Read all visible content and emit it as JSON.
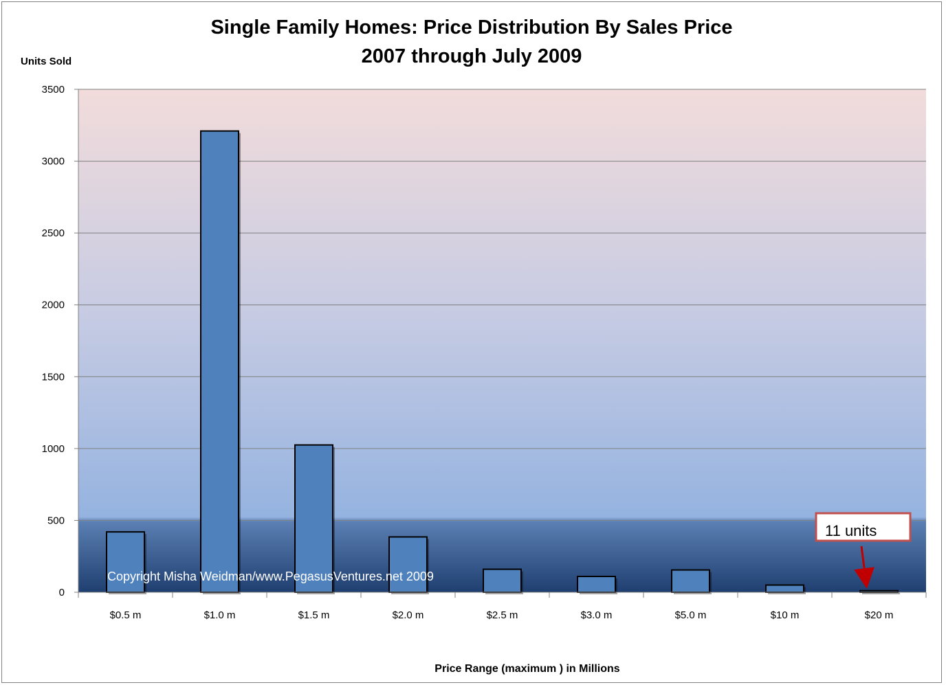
{
  "chart_data": {
    "type": "bar",
    "title": "Single Family Homes:  Price Distribution By Sales Price",
    "subtitle": "2007 through July 2009",
    "ylabel": "Units Sold",
    "xlabel": "Price Range (maximum ) in Millions",
    "categories": [
      "$0.5 m",
      "$1.0 m",
      "$1.5 m",
      "$2.0 m",
      "$2.5 m",
      "$3.0 m",
      "$5.0 m",
      "$10 m",
      "$20 m"
    ],
    "values": [
      420,
      3210,
      1025,
      385,
      160,
      110,
      155,
      50,
      11
    ],
    "ylim": [
      0,
      3500
    ],
    "yticks": [
      0,
      500,
      1000,
      1500,
      2000,
      2500,
      3000,
      3500
    ],
    "grid": true,
    "bar_color": "#4f81bd",
    "annotation": {
      "text": "11 units",
      "category": "$20 m",
      "border_color": "#c0504d",
      "arrow_color": "#c00000"
    },
    "watermark": "Copyright Misha Weidman/www.PegasusVentures.net 2009"
  }
}
